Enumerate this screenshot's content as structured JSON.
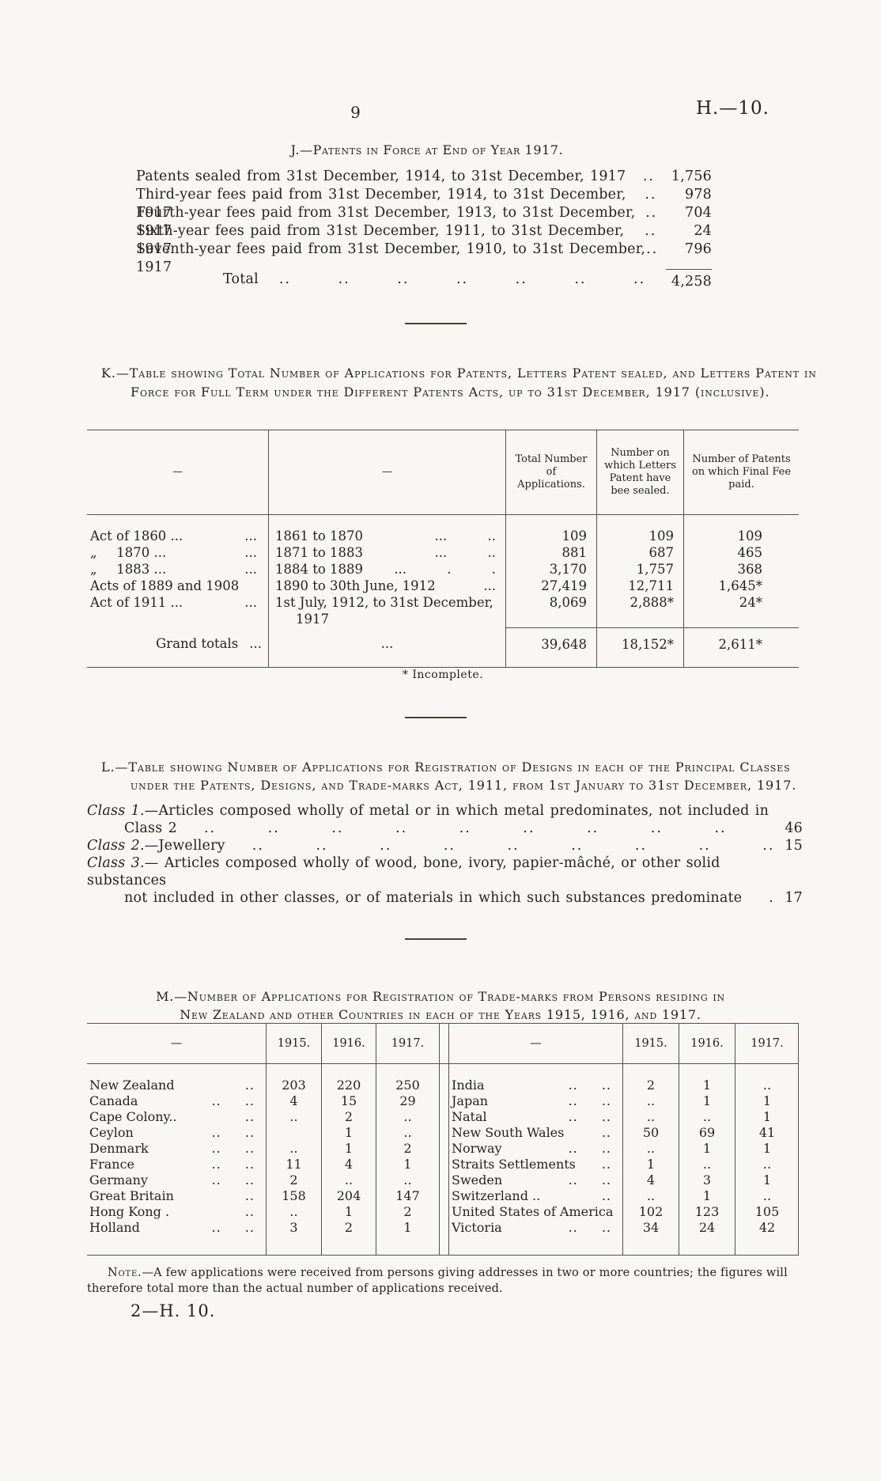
{
  "page": {
    "number": "9",
    "doc_ref": "H.—10.",
    "footer": "2—H. 10."
  },
  "section_j": {
    "title": "J.—Patents in Force at End of Year 1917.",
    "items": [
      {
        "label": "Patents sealed from 31st December, 1914, to 31st December, 1917",
        "dots": "..",
        "value": "1,756"
      },
      {
        "label": "Third-year fees paid from 31st December, 1914, to 31st December, 1917",
        "dots": "..",
        "value": "978"
      },
      {
        "label": "Fourth-year fees paid from 31st December, 1913, to 31st December, 1917",
        "dots": "..",
        "value": "704"
      },
      {
        "label": "Sixth-year fees paid from 31st December, 1911, to 31st December, 1917",
        "dots": "..",
        "value": "24"
      },
      {
        "label": "Seventh-year fees paid from 31st December, 1910, to 31st December, 1917",
        "dots": "..",
        "value": "796"
      }
    ],
    "total": {
      "label": "Total",
      "dots": ".. .. .. .. .. .. ..",
      "value": "4,258"
    }
  },
  "section_k": {
    "title": "K.—Table showing Total Number of Applications for Patents, Letters Patent sealed, and Letters Patent in Force for Full Term under the Different Patents Acts, up to 31st December, 1917 (inclusive).",
    "headers": {
      "dash1": "—",
      "dash2": "—",
      "applications": "Total Number of Applications.",
      "sealed": "Number on which Letters Patent have bee  sealed.",
      "final_fee": "Number of Patents on which Final Fee paid."
    },
    "rows": [
      {
        "act": "Act of 1860 ...",
        "act_dots": "...",
        "period": "1861 to 1870",
        "period_dots": "...  ..",
        "applications": "109",
        "sealed": "109",
        "final_fee": "109"
      },
      {
        "act": "„  1870 ...",
        "act_dots": "...",
        "period": "1871 to 1883",
        "period_dots": "...  ..",
        "applications": "881",
        "sealed": "687",
        "final_fee": "465"
      },
      {
        "act": "„  1883 ...",
        "act_dots": "...",
        "period": "1884 to 1889",
        "period_dots": "...  . .",
        "applications": "3,170",
        "sealed": "1,757",
        "final_fee": "368"
      },
      {
        "act": "Acts of 1889 and 1908",
        "act_dots": "",
        "period": "1890 to 30th June, 1912",
        "period_dots": "...",
        "applications": "27,419",
        "sealed": "12,711",
        "final_fee": "1,645*"
      },
      {
        "act": "Act of 1911 ...",
        "act_dots": "...",
        "period": "1st July, 1912, to 31st December,",
        "period_line2": "1917",
        "period_dots": "",
        "applications": "8,069",
        "sealed": "2,888*",
        "final_fee": "24*"
      }
    ],
    "grand_total": {
      "label": "Grand totals",
      "label_dots": "...",
      "period_dots": "...",
      "applications": "39,648",
      "sealed": "18,152*",
      "final_fee": "2,611*"
    },
    "footnote": "* Incomplete."
  },
  "section_l": {
    "title": "L.—Table showing Number of Applications for Registration of Designs in each of the Principal Classes under the Patents, Designs, and Trade-marks Act, 1911, from 1st January to 31st December, 1917.",
    "items": [
      {
        "label": "Class 1.",
        "text": "—Articles composed wholly of metal or in which metal predominates, not included in",
        "cont": "Class 2",
        "leader": ".. .. .. .. .. .. .. .. .. ..",
        "value": "46"
      },
      {
        "label": "Class 2.",
        "text": "—Jewellery",
        "leader": ".. .. .. .. .. .. .. .. ..",
        "value": "15"
      },
      {
        "label": "Class 3.",
        "text": "— Articles composed wholly of wood, bone, ivory, papier-mâché, or other solid substances",
        "cont": "not included in other classes, or of materials in which such substances predominate",
        "leader": "..",
        "value": "17"
      }
    ]
  },
  "section_m": {
    "title_line1": "M.—Number of Applications for Registration of Trade-marks from Persons residing in",
    "title_line2": "New Zealand and other Countries in each of the Years 1915, 1916, and 1917.",
    "header": {
      "dash": "—",
      "y1": "1915.",
      "y2": "1916.",
      "y3": "1917."
    },
    "left_rows": [
      {
        "name": "New Zealand",
        "lead": "..",
        "v1": "203",
        "v2": "220",
        "v3": "250"
      },
      {
        "name": "Canada",
        "lead": ".. ..",
        "v1": "4",
        "v2": "15",
        "v3": "29"
      },
      {
        "name": "Cape Colony..",
        "lead": "..",
        "v1": "..",
        "v2": "2",
        "v3": ".."
      },
      {
        "name": "Ceylon",
        "lead": ".. ..",
        "v1": "",
        "v2": "1",
        "v3": ".."
      },
      {
        "name": "Denmark",
        "lead": ".. ..",
        "v1": "..",
        "v2": "1",
        "v3": "2"
      },
      {
        "name": "France",
        "lead": ".. ..",
        "v1": "11",
        "v2": "4",
        "v3": "1"
      },
      {
        "name": "Germany",
        "lead": ".. ..",
        "v1": "2",
        "v2": "..",
        "v3": ".."
      },
      {
        "name": "Great Britain",
        "lead": "..",
        "v1": "158",
        "v2": "204",
        "v3": "147"
      },
      {
        "name": "Hong Kong .",
        "lead": "..",
        "v1": "..",
        "v2": "1",
        "v3": "2"
      },
      {
        "name": "Holland",
        "lead": ".. ..",
        "v1": "3",
        "v2": "2",
        "v3": "1"
      }
    ],
    "right_rows": [
      {
        "name": "India",
        "lead": ".. ..",
        "v1": "2",
        "v2": "1",
        "v3": ".."
      },
      {
        "name": "Japan",
        "lead": ".. ..",
        "v1": "..",
        "v2": "1",
        "v3": "1"
      },
      {
        "name": "Natal",
        "lead": ".. ..",
        "v1": "..",
        "v2": "..",
        "v3": "1"
      },
      {
        "name": "New South Wales",
        "lead": "..",
        "v1": "50",
        "v2": "69",
        "v3": "41"
      },
      {
        "name": "Norway",
        "lead": ".. ..",
        "v1": "..",
        "v2": "1",
        "v3": "1"
      },
      {
        "name": "Straits Settlements",
        "lead": "..",
        "v1": "1",
        "v2": "..",
        "v3": ".."
      },
      {
        "name": "Sweden",
        "lead": ".. ..",
        "v1": "4",
        "v2": "3",
        "v3": "1"
      },
      {
        "name": "Switzerland ..",
        "lead": "..",
        "v1": "..",
        "v2": "1",
        "v3": ".."
      },
      {
        "name": "United States of America",
        "lead": "",
        "v1": "102",
        "v2": "123",
        "v3": "105"
      },
      {
        "name": "Victoria",
        "lead": ".. ..",
        "v1": "34",
        "v2": "24",
        "v3": "42"
      }
    ],
    "note_label": "Note.",
    "note_text": "—A few applications were received from persons giving addresses in two or more countries; the figures will therefore total more than the actual number of applications received."
  }
}
